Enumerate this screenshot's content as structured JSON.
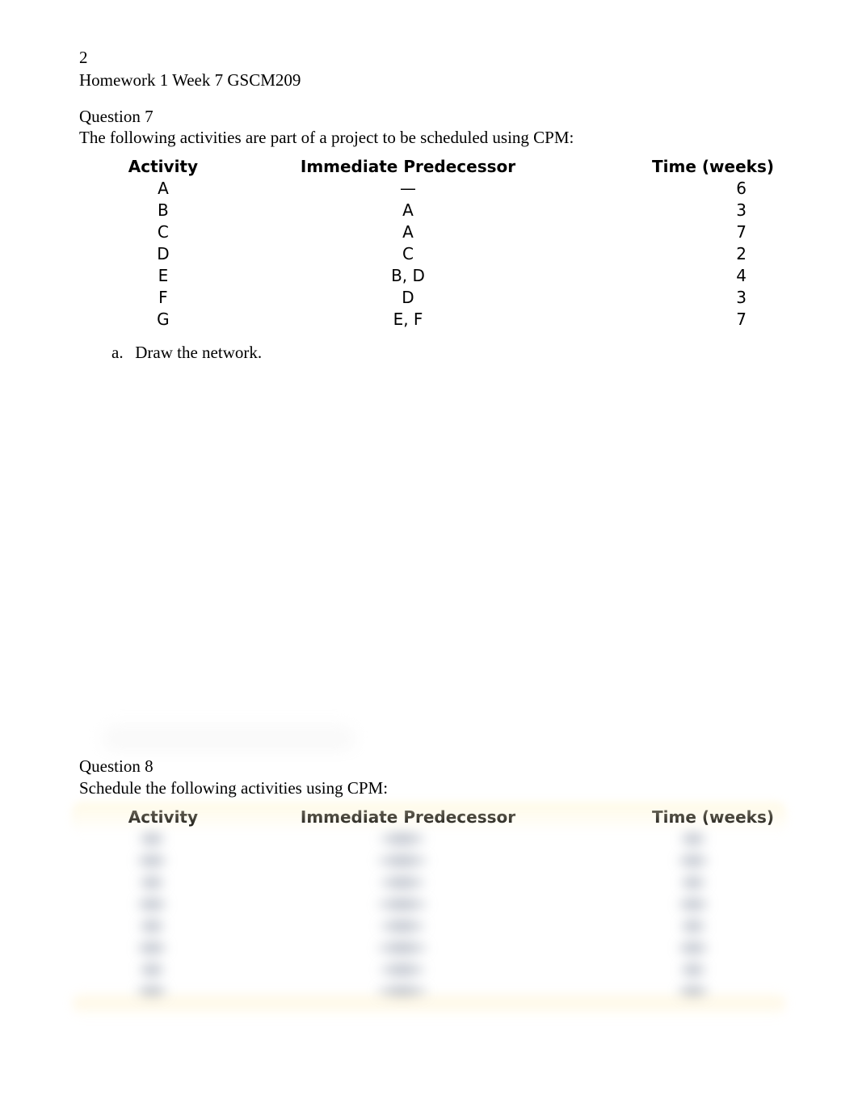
{
  "header": {
    "page_number": "2",
    "running_head": "Homework 1 Week 7 GSCM209"
  },
  "question7": {
    "title": "Question 7",
    "intro": "The following activities are part of a project to be scheduled using CPM:",
    "columns": {
      "activity": "Activity",
      "predecessor": "Immediate Predecessor",
      "time": "Time (weeks)"
    },
    "rows": [
      {
        "activity": "A",
        "predecessor": "—",
        "time": "6"
      },
      {
        "activity": "B",
        "predecessor": "A",
        "time": "3"
      },
      {
        "activity": "C",
        "predecessor": "A",
        "time": "7"
      },
      {
        "activity": "D",
        "predecessor": "C",
        "time": "2"
      },
      {
        "activity": "E",
        "predecessor": "B, D",
        "time": "4"
      },
      {
        "activity": "F",
        "predecessor": "D",
        "time": "3"
      },
      {
        "activity": "G",
        "predecessor": "E, F",
        "time": "7"
      }
    ],
    "sub_a_marker": "a.",
    "sub_a_text": "Draw the network."
  },
  "question8": {
    "title": "Question 8",
    "intro": "Schedule the following activities using CPM:",
    "columns": {
      "activity": "Activity",
      "predecessor": "Immediate Predecessor",
      "time": "Time (weeks)"
    },
    "blurred_row_count": 8
  },
  "style": {
    "page_bg": "#ffffff",
    "text_color": "#000000",
    "serif_font": "Times New Roman",
    "sans_font": "Verdana",
    "body_fontsize_pt": 16,
    "table_header_fontsize_pt": 15,
    "table_header_weight": "bold",
    "q8_blur_tint": "#7b8596",
    "q8_highlight_tint": "#ffeeb4"
  }
}
